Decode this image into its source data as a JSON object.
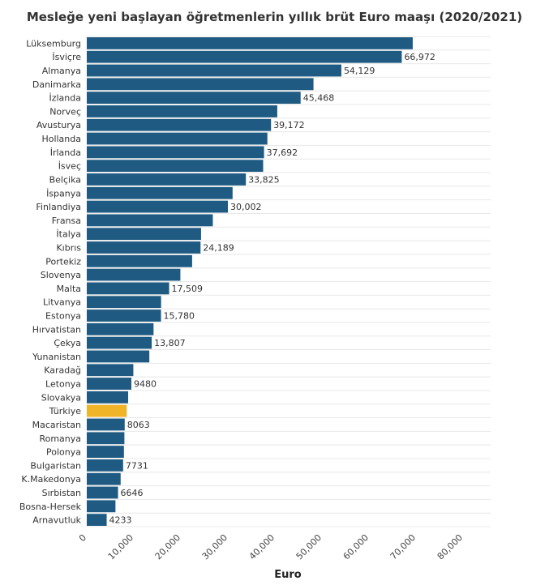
{
  "chart_data": {
    "type": "bar",
    "orientation": "horizontal",
    "title": "Mesleğe yeni başlayan öğretmenlerin yıllık brüt Euro maaşı (2020/2021)",
    "xlabel": "Euro",
    "ylabel": "",
    "xlim": [
      0,
      80000
    ],
    "xticks": [
      0,
      10000,
      20000,
      30000,
      40000,
      50000,
      60000,
      70000,
      80000
    ],
    "xtick_labels": [
      "0",
      "10,000",
      "20,000",
      "30,000",
      "40,000",
      "50,000",
      "60,000",
      "70,000",
      "80,000"
    ],
    "grid": true,
    "colors": {
      "default": "#1e5a82",
      "highlight": "#f0b429"
    },
    "bars": [
      {
        "category": "Lüksemburg",
        "value": 69300,
        "label": ""
      },
      {
        "category": "İsviçre",
        "value": 66972,
        "label": "66,972"
      },
      {
        "category": "Almanya",
        "value": 54129,
        "label": "54,129"
      },
      {
        "category": "Danimarka",
        "value": 48200,
        "label": ""
      },
      {
        "category": "İzlanda",
        "value": 45468,
        "label": "45,468"
      },
      {
        "category": "Norveç",
        "value": 40500,
        "label": ""
      },
      {
        "category": "Avusturya",
        "value": 39172,
        "label": "39,172"
      },
      {
        "category": "Hollanda",
        "value": 38400,
        "label": ""
      },
      {
        "category": "İrlanda",
        "value": 37692,
        "label": "37,692"
      },
      {
        "category": "İsveç",
        "value": 37500,
        "label": ""
      },
      {
        "category": "Belçika",
        "value": 33825,
        "label": "33,825"
      },
      {
        "category": "İspanya",
        "value": 31000,
        "label": ""
      },
      {
        "category": "Finlandiya",
        "value": 30002,
        "label": "30,002"
      },
      {
        "category": "Fransa",
        "value": 26800,
        "label": ""
      },
      {
        "category": "İtalya",
        "value": 24300,
        "label": ""
      },
      {
        "category": "Kıbrıs",
        "value": 24189,
        "label": "24,189"
      },
      {
        "category": "Portekiz",
        "value": 22400,
        "label": ""
      },
      {
        "category": "Slovenya",
        "value": 19900,
        "label": ""
      },
      {
        "category": "Malta",
        "value": 17509,
        "label": "17,509"
      },
      {
        "category": "Litvanya",
        "value": 15800,
        "label": ""
      },
      {
        "category": "Estonya",
        "value": 15780,
        "label": "15,780"
      },
      {
        "category": "Hırvatistan",
        "value": 14200,
        "label": ""
      },
      {
        "category": "Çekya",
        "value": 13807,
        "label": "13,807"
      },
      {
        "category": "Yunanistan",
        "value": 13300,
        "label": ""
      },
      {
        "category": "Karadağ",
        "value": 9900,
        "label": ""
      },
      {
        "category": "Letonya",
        "value": 9480,
        "label": "9480"
      },
      {
        "category": "Slovakya",
        "value": 8800,
        "label": ""
      },
      {
        "category": "Türkiye",
        "value": 8500,
        "label": "",
        "highlight": true
      },
      {
        "category": "Macaristan",
        "value": 8063,
        "label": "8063"
      },
      {
        "category": "Romanya",
        "value": 8000,
        "label": ""
      },
      {
        "category": "Polonya",
        "value": 7900,
        "label": ""
      },
      {
        "category": "Bulgaristan",
        "value": 7731,
        "label": "7731"
      },
      {
        "category": "K.Makedonya",
        "value": 7200,
        "label": ""
      },
      {
        "category": "Sırbistan",
        "value": 6646,
        "label": "6646"
      },
      {
        "category": "Bosna-Hersek",
        "value": 6100,
        "label": ""
      },
      {
        "category": "Arnavutluk",
        "value": 4233,
        "label": "4233"
      }
    ]
  }
}
